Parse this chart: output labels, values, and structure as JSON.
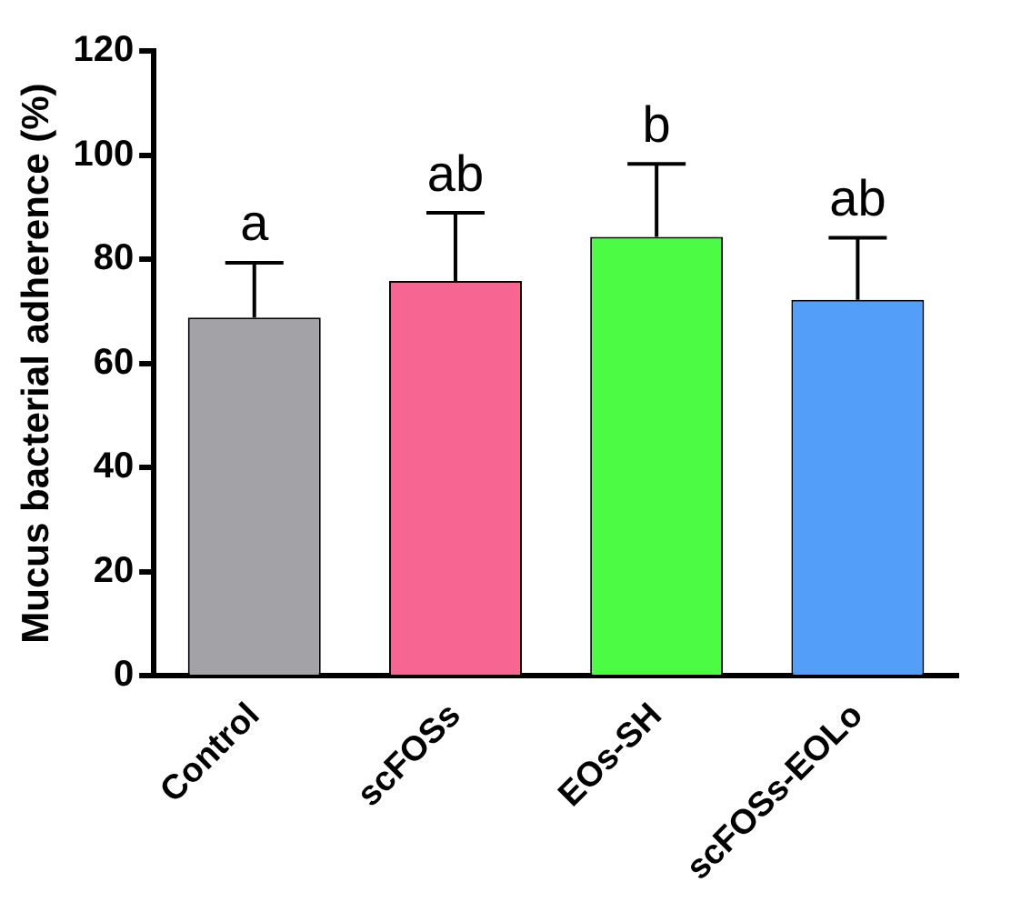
{
  "chart_data": {
    "type": "bar",
    "ylabel": "Mucus bacterial adherence (%)",
    "categories": [
      "Control",
      "scFOSs",
      "EOs-SH",
      "scFOSs-EOLo"
    ],
    "values": [
      68.8,
      75.8,
      84.3,
      72.2
    ],
    "errors": [
      10.5,
      13.1,
      14.0,
      11.9
    ],
    "colors": [
      "#a3a2a6",
      "#f76593",
      "#4cfc44",
      "#529ef8"
    ],
    "ylim": [
      0,
      120
    ],
    "yticks": [
      0,
      20,
      40,
      60,
      80,
      100,
      120
    ],
    "grid": false,
    "legend": false,
    "annotations": [
      "a",
      "ab",
      "b",
      "ab"
    ]
  }
}
